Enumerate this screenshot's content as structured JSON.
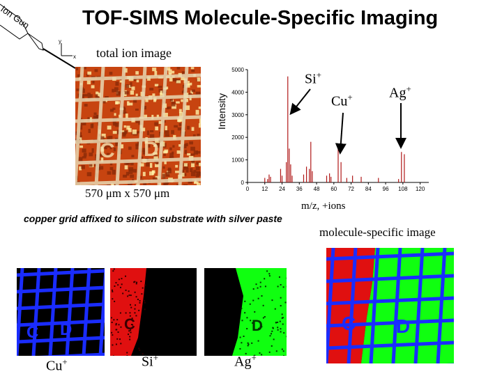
{
  "title": "TOF-SIMS Molecule-Specific Imaging",
  "ion_gun_label": "Ion Gun",
  "axes_icon": {
    "y_label": "y",
    "x_label": "x"
  },
  "total_ion_image_label": "total ion image",
  "image_size_caption": "570 μm x 570 μm",
  "grid_caption": "copper grid affixed to silicon substrate with silver paste",
  "molecule_specific_label": "molecule-specific image",
  "spectrum_annotations": [
    {
      "ion": "Si",
      "charge": "+"
    },
    {
      "ion": "Cu",
      "charge": "+"
    },
    {
      "ion": "Ag",
      "charge": "+"
    }
  ],
  "panel_labels": [
    {
      "ion": "Cu",
      "charge": "+",
      "color": "#1a2cff"
    },
    {
      "ion": "Si",
      "charge": "+",
      "color": "#e01010"
    },
    {
      "ion": "Ag",
      "charge": "+",
      "color": "#10ff10"
    }
  ],
  "chart_data": {
    "type": "bar",
    "ylabel": "Intensity",
    "xlabel": "m/z, +ions",
    "xlim": [
      0,
      126
    ],
    "ylim": [
      0,
      5000
    ],
    "x_ticks": [
      0,
      12,
      24,
      36,
      48,
      60,
      72,
      84,
      96,
      108,
      120
    ],
    "y_ticks": [
      0,
      1000,
      2000,
      3000,
      4000,
      5000
    ],
    "peaks": [
      {
        "x": 12,
        "y": 200
      },
      {
        "x": 14,
        "y": 150
      },
      {
        "x": 15,
        "y": 350
      },
      {
        "x": 16,
        "y": 250
      },
      {
        "x": 23,
        "y": 600
      },
      {
        "x": 24,
        "y": 300
      },
      {
        "x": 27,
        "y": 900
      },
      {
        "x": 28,
        "y": 4700
      },
      {
        "x": 29,
        "y": 1500
      },
      {
        "x": 30,
        "y": 800
      },
      {
        "x": 31,
        "y": 300
      },
      {
        "x": 39,
        "y": 350
      },
      {
        "x": 41,
        "y": 700
      },
      {
        "x": 43,
        "y": 600
      },
      {
        "x": 44,
        "y": 1800
      },
      {
        "x": 45,
        "y": 500
      },
      {
        "x": 55,
        "y": 300
      },
      {
        "x": 57,
        "y": 400
      },
      {
        "x": 58,
        "y": 250
      },
      {
        "x": 63,
        "y": 1500
      },
      {
        "x": 65,
        "y": 900
      },
      {
        "x": 69,
        "y": 200
      },
      {
        "x": 73,
        "y": 300
      },
      {
        "x": 79,
        "y": 250
      },
      {
        "x": 91,
        "y": 200
      },
      {
        "x": 105,
        "y": 150
      },
      {
        "x": 107,
        "y": 1350
      },
      {
        "x": 109,
        "y": 1250
      }
    ],
    "color": "#b01818"
  },
  "colors": {
    "total_ion_base": "#c74410",
    "total_ion_bright": "#fff2a8",
    "cu_grid": "#1a2cff",
    "si_red": "#e01010",
    "ag_green": "#10ff10"
  }
}
